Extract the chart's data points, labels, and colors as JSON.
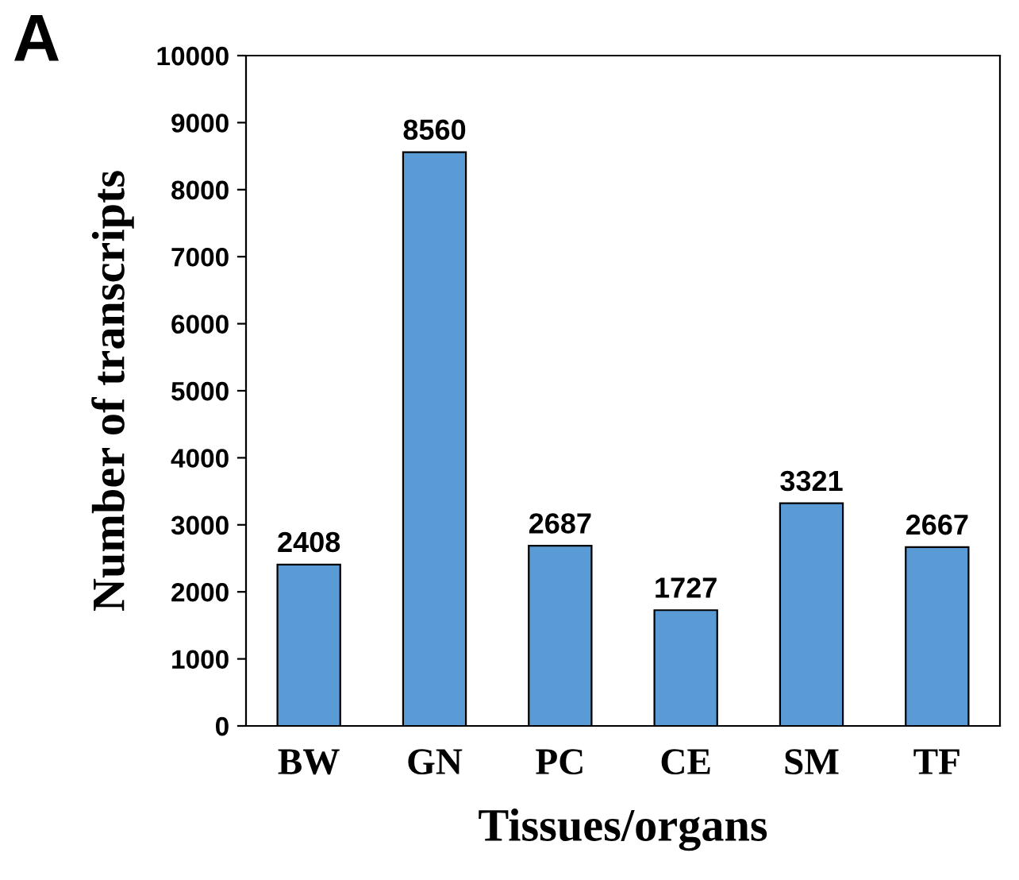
{
  "chart_data": {
    "type": "bar",
    "xlabel": "Tissues/organs",
    "ylabel": "Number of transcripts",
    "categories": [
      "BW",
      "GN",
      "PC",
      "CE",
      "SM",
      "TF"
    ],
    "values": [
      2408,
      8560,
      2687,
      1727,
      3321,
      2667
    ],
    "color": "#5b9bd5",
    "ylim": [
      0,
      10000
    ],
    "yticks": [
      0,
      1000,
      2000,
      3000,
      4000,
      5000,
      6000,
      7000,
      8000,
      9000,
      10000
    ],
    "grid": false,
    "data_labels": true,
    "annotations": [
      "A"
    ]
  }
}
